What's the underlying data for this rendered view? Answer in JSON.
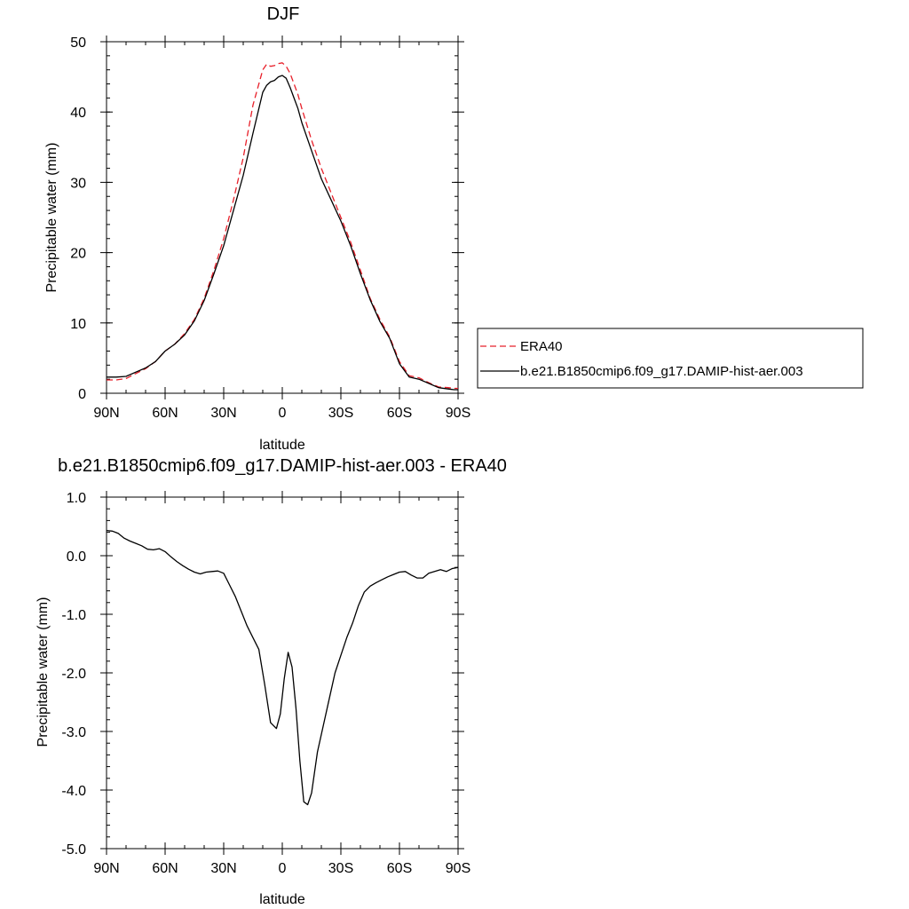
{
  "chart_data": [
    {
      "type": "line",
      "title": "DJF",
      "xlabel": "latitude",
      "ylabel": "Precipitable water (mm)",
      "xlim": [
        90,
        -90
      ],
      "ylim": [
        0,
        50
      ],
      "xticks": [
        90,
        60,
        30,
        0,
        -30,
        -60,
        -90
      ],
      "xtick_labels": [
        "90N",
        "60N",
        "30N",
        "0",
        "30S",
        "60S",
        "90S"
      ],
      "yticks": [
        0,
        10,
        20,
        30,
        40,
        50
      ],
      "ytick_labels": [
        "0",
        "10",
        "20",
        "30",
        "40",
        "50"
      ],
      "legend_position": "right",
      "series": [
        {
          "name": "ERA40",
          "color": "#e8202a",
          "dash": "dashed",
          "x": [
            90,
            85,
            80,
            75,
            70,
            65,
            60,
            55,
            50,
            45,
            40,
            35,
            30,
            25,
            20,
            15,
            10,
            8,
            6,
            4,
            2,
            0,
            -2,
            -4,
            -6,
            -8,
            -10,
            -15,
            -20,
            -25,
            -30,
            -35,
            -40,
            -45,
            -50,
            -55,
            -60,
            -65,
            -70,
            -75,
            -80,
            -85,
            -88,
            -90
          ],
          "y": [
            1.9,
            1.9,
            2.1,
            2.8,
            3.5,
            4.5,
            6.0,
            7.0,
            8.5,
            10.5,
            13.5,
            17.5,
            22.0,
            27.5,
            33.5,
            41.0,
            46.0,
            46.8,
            46.5,
            46.6,
            46.9,
            47.0,
            46.5,
            45.5,
            44.0,
            42.5,
            40.5,
            36.0,
            32.0,
            28.5,
            25.0,
            21.5,
            17.5,
            13.5,
            10.5,
            8.0,
            4.5,
            2.5,
            2.2,
            1.5,
            0.9,
            0.8,
            0.7,
            0.7
          ]
        },
        {
          "name": "b.e21.B1850cmip6.f09_g17.DAMIP-hist-aer.003",
          "color": "#000000",
          "dash": "solid",
          "x": [
            90,
            85,
            80,
            75,
            70,
            65,
            60,
            55,
            50,
            45,
            40,
            35,
            30,
            25,
            20,
            15,
            10,
            8,
            6,
            4,
            2,
            0,
            -2,
            -4,
            -6,
            -8,
            -10,
            -15,
            -20,
            -25,
            -30,
            -35,
            -40,
            -45,
            -50,
            -55,
            -60,
            -65,
            -70,
            -75,
            -80,
            -85,
            -88,
            -90
          ],
          "y": [
            2.3,
            2.3,
            2.4,
            3.0,
            3.6,
            4.5,
            6.0,
            7.0,
            8.3,
            10.3,
            13.2,
            17.0,
            21.0,
            26.0,
            31.0,
            37.0,
            42.8,
            43.8,
            44.3,
            44.5,
            45.0,
            45.2,
            44.8,
            43.5,
            42.0,
            40.5,
            38.5,
            34.5,
            30.5,
            27.5,
            24.5,
            21.0,
            17.0,
            13.3,
            10.2,
            7.8,
            4.2,
            2.3,
            2.0,
            1.4,
            0.8,
            0.6,
            0.5,
            0.5
          ]
        }
      ]
    },
    {
      "type": "line",
      "title": "b.e21.B1850cmip6.f09_g17.DAMIP-hist-aer.003 - ERA40",
      "xlabel": "latitude",
      "ylabel": "Precipitable water (mm)",
      "xlim": [
        90,
        -90
      ],
      "ylim": [
        -5.0,
        1.0
      ],
      "xticks": [
        90,
        60,
        30,
        0,
        -30,
        -60,
        -90
      ],
      "xtick_labels": [
        "90N",
        "60N",
        "30N",
        "0",
        "30S",
        "60S",
        "90S"
      ],
      "yticks": [
        1.0,
        0.0,
        -1.0,
        -2.0,
        -3.0,
        -4.0,
        -5.0
      ],
      "ytick_labels": [
        "1.0",
        "0.0",
        "-1.0",
        "-2.0",
        "-3.0",
        "-4.0",
        "-5.0"
      ],
      "series": [
        {
          "color": "#000000",
          "dash": "solid",
          "x": [
            90,
            87,
            84,
            81,
            78,
            75,
            72,
            69,
            66,
            63,
            60,
            57,
            54,
            51,
            48,
            45,
            42,
            39,
            36,
            33,
            30,
            27,
            24,
            21,
            18,
            15,
            12,
            9,
            6,
            3,
            1,
            -1,
            -3,
            -5,
            -7,
            -9,
            -11,
            -13,
            -15,
            -18,
            -21,
            -24,
            -27,
            -30,
            -33,
            -36,
            -39,
            -42,
            -45,
            -48,
            -51,
            -54,
            -57,
            -60,
            -63,
            -66,
            -69,
            -72,
            -75,
            -78,
            -81,
            -84,
            -87,
            -90
          ],
          "y": [
            0.43,
            0.42,
            0.38,
            0.3,
            0.25,
            0.21,
            0.17,
            0.11,
            0.1,
            0.12,
            0.07,
            -0.02,
            -0.1,
            -0.17,
            -0.23,
            -0.28,
            -0.31,
            -0.28,
            -0.27,
            -0.26,
            -0.3,
            -0.5,
            -0.7,
            -0.95,
            -1.2,
            -1.4,
            -1.6,
            -2.2,
            -2.85,
            -2.95,
            -2.7,
            -2.1,
            -1.65,
            -1.9,
            -2.6,
            -3.5,
            -4.2,
            -4.25,
            -4.05,
            -3.35,
            -2.9,
            -2.45,
            -2.0,
            -1.7,
            -1.4,
            -1.15,
            -0.85,
            -0.62,
            -0.52,
            -0.46,
            -0.41,
            -0.36,
            -0.32,
            -0.28,
            -0.27,
            -0.33,
            -0.38,
            -0.38,
            -0.3,
            -0.27,
            -0.24,
            -0.27,
            -0.22,
            -0.2
          ]
        }
      ]
    }
  ]
}
